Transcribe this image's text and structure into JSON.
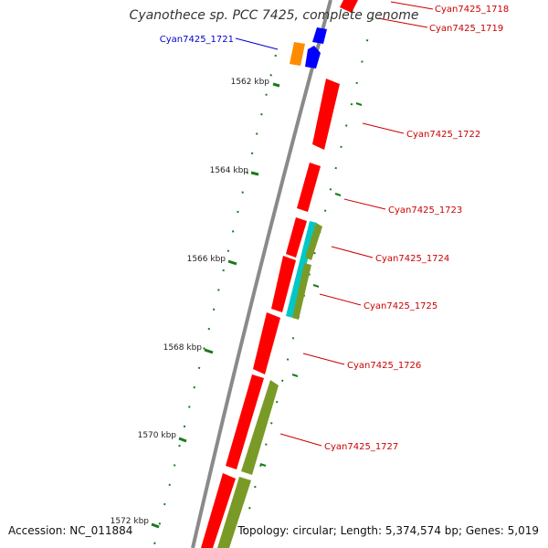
{
  "title": "Cyanothece sp. PCC 7425, complete genome",
  "footer": {
    "accession": "Accession: NC_011884",
    "summary": "Topology: circular; Length: 5,374,574 bp; Genes: 5,019"
  },
  "colors": {
    "backbone": "#8a8a8a",
    "cds": "#ff0000",
    "blue_gene": "#0000ff",
    "orange_gene": "#ff8c00",
    "cyan_gene": "#00c8c8",
    "olive_gene": "#7a9a28",
    "ruler_tick": "#1a7a1a",
    "label_red": "#cc0000",
    "label_blue": "#0000cc"
  },
  "ruler_labels": [
    "1562 kbp",
    "1564 kbp",
    "1566 kbp",
    "1568 kbp",
    "1570 kbp",
    "1572 kbp"
  ],
  "gene_labels": [
    {
      "text": "Cyan7425_1718",
      "color": "red"
    },
    {
      "text": "Cyan7425_1719",
      "color": "red"
    },
    {
      "text": "Cyan7425_1721",
      "color": "blue"
    },
    {
      "text": "Cyan7425_1722",
      "color": "red"
    },
    {
      "text": "Cyan7425_1723",
      "color": "red"
    },
    {
      "text": "Cyan7425_1724",
      "color": "red"
    },
    {
      "text": "Cyan7425_1725",
      "color": "red"
    },
    {
      "text": "Cyan7425_1726",
      "color": "red"
    },
    {
      "text": "Cyan7425_1727",
      "color": "red"
    }
  ]
}
